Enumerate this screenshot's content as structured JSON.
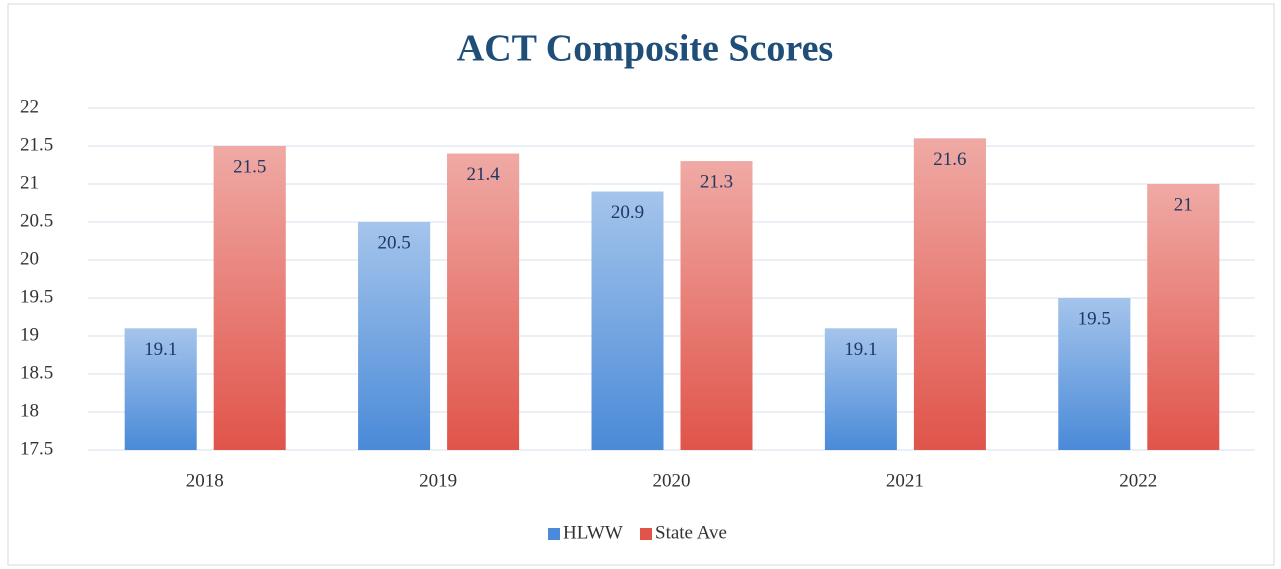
{
  "chart_data": {
    "type": "bar",
    "title": "ACT Composite Scores",
    "categories": [
      "2018",
      "2019",
      "2020",
      "2021",
      "2022"
    ],
    "series": [
      {
        "name": "HLWW",
        "color": "#4a8ad8",
        "values": [
          19.1,
          20.5,
          20.9,
          19.1,
          19.5
        ]
      },
      {
        "name": "State Ave",
        "color": "#e0544a",
        "values": [
          21.5,
          21.4,
          21.3,
          21.6,
          21
        ]
      }
    ],
    "ylim": [
      17.5,
      22
    ],
    "yticks": [
      17.5,
      18,
      18.5,
      19,
      19.5,
      20,
      20.5,
      21,
      21.5,
      22
    ],
    "grid": true,
    "legend": "bottom"
  }
}
